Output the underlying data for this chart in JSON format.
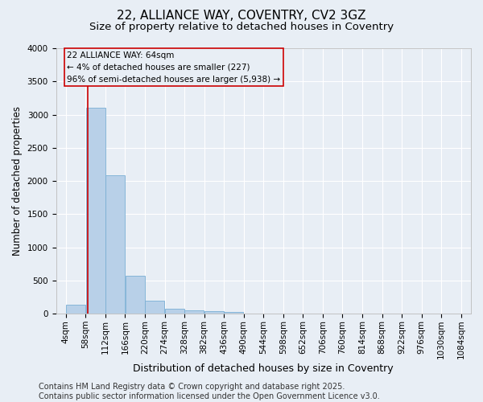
{
  "title": "22, ALLIANCE WAY, COVENTRY, CV2 3GZ",
  "subtitle": "Size of property relative to detached houses in Coventry",
  "xlabel": "Distribution of detached houses by size in Coventry",
  "ylabel": "Number of detached properties",
  "bar_color": "#b8d0e8",
  "bar_edge_color": "#7aafd4",
  "background_color": "#e8eef5",
  "grid_color": "#ffffff",
  "annotation_box_color": "#cc0000",
  "annotation_text": "22 ALLIANCE WAY: 64sqm\n← 4% of detached houses are smaller (227)\n96% of semi-detached houses are larger (5,938) →",
  "vline_x": 64,
  "vline_color": "#cc0000",
  "bin_edges": [
    4,
    58,
    112,
    166,
    220,
    274,
    328,
    382,
    436,
    490,
    544,
    598,
    652,
    706,
    760,
    814,
    868,
    922,
    976,
    1030,
    1084
  ],
  "bar_heights": [
    130,
    3100,
    2080,
    575,
    200,
    75,
    55,
    35,
    30,
    5,
    2,
    1,
    0,
    0,
    0,
    0,
    0,
    0,
    0,
    0
  ],
  "ylim": [
    0,
    4000
  ],
  "yticks": [
    0,
    500,
    1000,
    1500,
    2000,
    2500,
    3000,
    3500,
    4000
  ],
  "footer_text": "Contains HM Land Registry data © Crown copyright and database right 2025.\nContains public sector information licensed under the Open Government Licence v3.0.",
  "title_fontsize": 11,
  "subtitle_fontsize": 9.5,
  "xlabel_fontsize": 9,
  "ylabel_fontsize": 8.5,
  "tick_fontsize": 7.5,
  "footer_fontsize": 7,
  "annotation_fontsize": 7.5
}
